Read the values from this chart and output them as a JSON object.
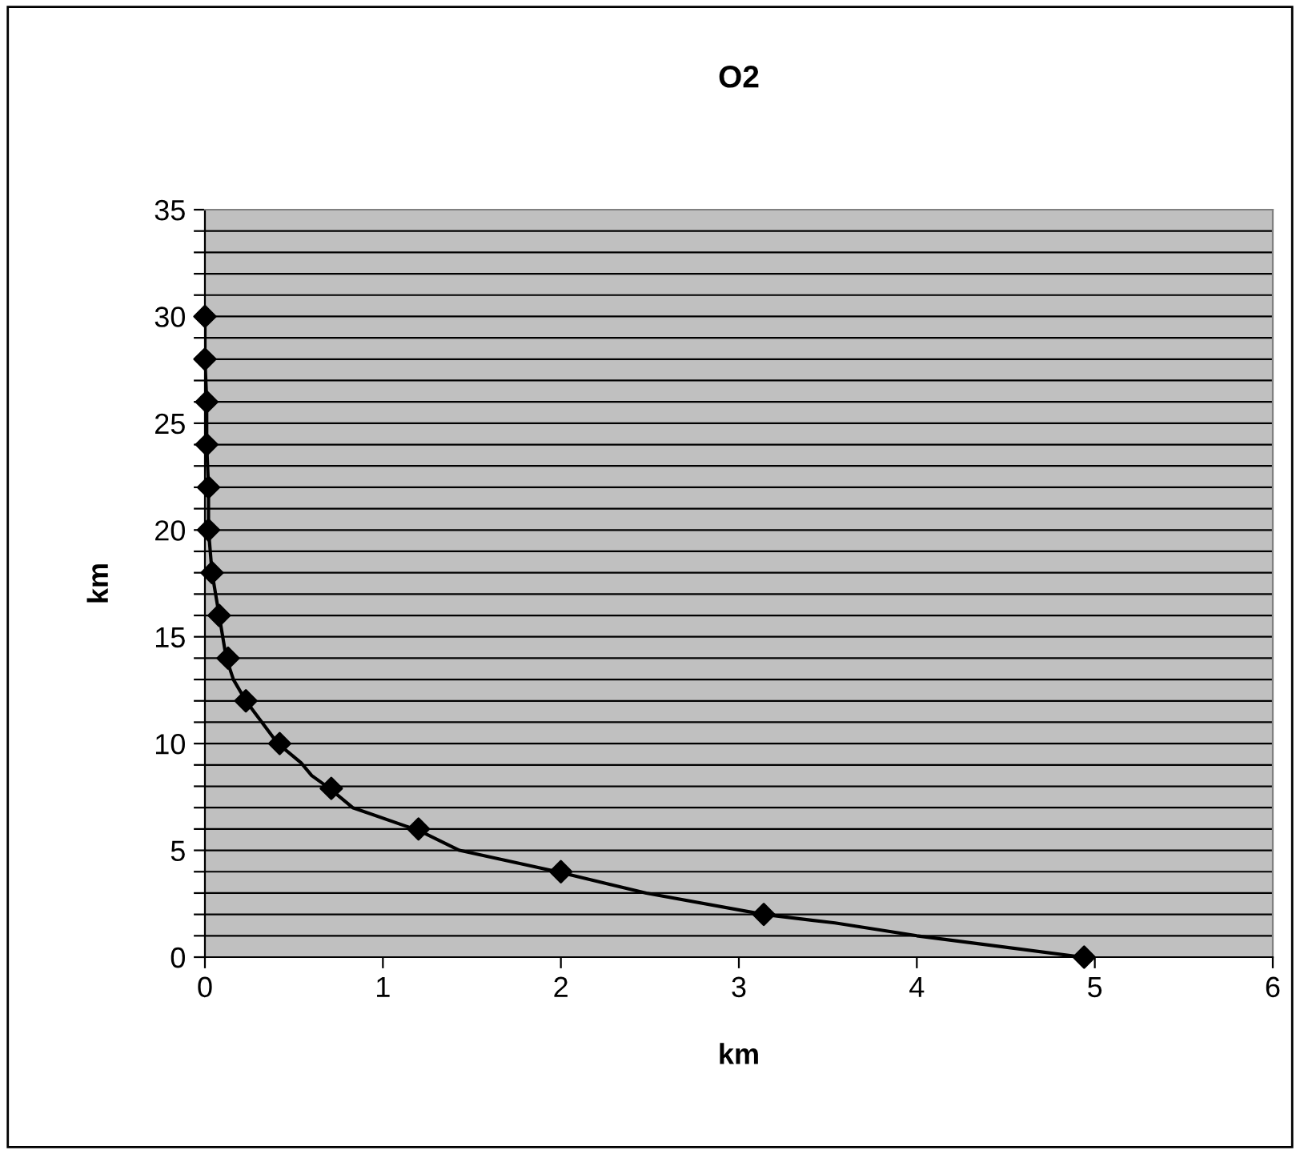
{
  "chart_data": {
    "type": "line",
    "title": "O2",
    "xlabel": "km",
    "ylabel": "km",
    "xlim": [
      0,
      6
    ],
    "xticks": [
      0,
      1,
      2,
      3,
      4,
      5,
      6
    ],
    "ylim": [
      0,
      35
    ],
    "yticks": [
      0,
      {
        "value": 1,
        "label": null
      },
      {
        "value": 2,
        "label": null
      },
      {
        "value": 3,
        "label": null
      },
      {
        "value": 4,
        "label": null
      },
      5,
      {
        "value": 6,
        "label": null
      },
      {
        "value": 7,
        "label": null
      },
      {
        "value": 8,
        "label": null
      },
      {
        "value": 9,
        "label": null
      },
      10,
      {
        "value": 11,
        "label": null
      },
      {
        "value": 12,
        "label": null
      },
      {
        "value": 13,
        "label": null
      },
      {
        "value": 14,
        "label": null
      },
      15,
      {
        "value": 16,
        "label": null
      },
      {
        "value": 17,
        "label": null
      },
      {
        "value": 18,
        "label": null
      },
      {
        "value": 19,
        "label": null
      },
      20,
      {
        "value": 21,
        "label": null
      },
      {
        "value": 22,
        "label": null
      },
      {
        "value": 23,
        "label": null
      },
      {
        "value": 24,
        "label": null
      },
      25,
      {
        "value": 26,
        "label": null
      },
      {
        "value": 27,
        "label": null
      },
      {
        "value": 28,
        "label": null
      },
      {
        "value": 29,
        "label": null
      },
      30,
      {
        "value": 31,
        "label": null
      },
      {
        "value": 32,
        "label": null
      },
      {
        "value": 33,
        "label": null
      },
      {
        "value": 34,
        "label": null
      },
      35
    ],
    "grid": "y",
    "legend": false,
    "line_style": "solid",
    "series": [
      {
        "marker": "none",
        "color": "#000000",
        "x": [
          4.93,
          4.0,
          3.54,
          3.14,
          2.48,
          1.98,
          1.43,
          1.21,
          0.83,
          0.7,
          0.6,
          0.54,
          0.41,
          0.32,
          0.23,
          0.16,
          0.12,
          0.08,
          0.04,
          0.02,
          0.02,
          0.01,
          0.01,
          0.0,
          0.0
        ],
        "values": [
          0,
          1,
          1.6,
          2,
          3,
          4,
          5,
          5.9,
          7,
          7.9,
          8.5,
          9.1,
          10,
          11,
          12,
          13,
          14,
          16,
          18,
          20,
          22,
          24,
          26,
          28,
          30
        ]
      },
      {
        "type": "scatter",
        "marker": "diamond",
        "color": "#000000",
        "x": [
          4.94,
          3.14,
          2.0,
          1.2,
          0.71,
          0.42,
          0.23,
          0.13,
          0.08,
          0.04,
          0.02,
          0.02,
          0.01,
          0.01,
          0.0,
          0.0
        ],
        "values": [
          0,
          2,
          4,
          6,
          7.9,
          10,
          12,
          14,
          16,
          18,
          20,
          22,
          24,
          26,
          28,
          30
        ]
      }
    ]
  }
}
